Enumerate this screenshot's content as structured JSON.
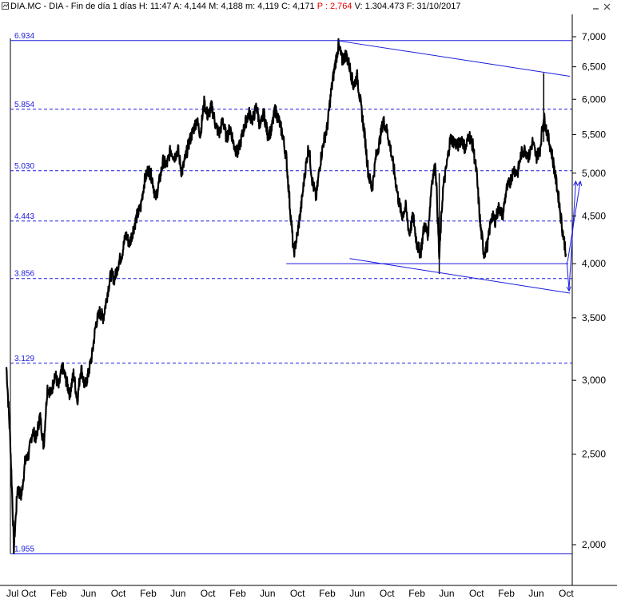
{
  "header": {
    "symbol": "DIA.MC",
    "name": "DIA",
    "period": "Fin de día 1 días",
    "high": "H: 11:47",
    "open": "A: 4,144",
    "max": "M: 4,188",
    "min": "m: 4,119",
    "close": "C: 4,171",
    "pct": "P : 2,764",
    "volume": "V: 1.304.473",
    "date": "F: 31/10/2017"
  },
  "colors": {
    "price": "#000000",
    "levels": "#1a1adc",
    "trend": "#1a1adc",
    "pct": "#e00000"
  },
  "chart_data": {
    "type": "line",
    "scale": "log",
    "ylim": [
      1.9,
      7.0
    ],
    "y_ticks": [
      2.0,
      2.5,
      3.0,
      3.5,
      4.0,
      4.5,
      5.0,
      5.5,
      6.0,
      6.5,
      7.0
    ],
    "y_tick_labels": [
      "2,000",
      "2,500",
      "3,000",
      "3,500",
      "4,000",
      "4,500",
      "5,000",
      "5,500",
      "6,000",
      "6,500",
      "7,000"
    ],
    "x_ticks": [
      {
        "label": "Jul",
        "t": 0
      },
      {
        "label": "Oct",
        "t": 3
      },
      {
        "label": "Feb",
        "t": 7
      },
      {
        "label": "Jun",
        "t": 11
      },
      {
        "label": "Oct",
        "t": 15
      },
      {
        "label": "Feb",
        "t": 19
      },
      {
        "label": "Jun",
        "t": 23
      },
      {
        "label": "Oct",
        "t": 27
      },
      {
        "label": "Feb",
        "t": 31
      },
      {
        "label": "Jun",
        "t": 35
      },
      {
        "label": "Oct",
        "t": 39
      },
      {
        "label": "Feb",
        "t": 43
      },
      {
        "label": "Jun",
        "t": 47
      },
      {
        "label": "Oct",
        "t": 51
      },
      {
        "label": "Feb",
        "t": 55
      },
      {
        "label": "Jun",
        "t": 59
      },
      {
        "label": "Oct",
        "t": 63
      },
      {
        "label": "Feb",
        "t": 67
      },
      {
        "label": "Jun",
        "t": 71
      },
      {
        "label": "Oct",
        "t": 75
      }
    ],
    "x_range": [
      0,
      75.5
    ],
    "levels": [
      {
        "value": 6.934,
        "label": "6.934",
        "style": "solid"
      },
      {
        "value": 5.854,
        "label": "5.854",
        "style": "dashed"
      },
      {
        "value": 5.03,
        "label": "5.030",
        "style": "dashed"
      },
      {
        "value": 4.443,
        "label": "4.443",
        "style": "dashed"
      },
      {
        "value": 3.856,
        "label": "3.856",
        "style": "dashed"
      },
      {
        "value": 3.129,
        "label": "3.129",
        "style": "dashed"
      },
      {
        "value": 1.955,
        "label": "1.955",
        "style": "solid"
      }
    ],
    "series": [
      {
        "points": [
          [
            0,
            3.1
          ],
          [
            0.5,
            2.6
          ],
          [
            1,
            1.98
          ],
          [
            1.5,
            2.3
          ],
          [
            2,
            2.25
          ],
          [
            2.5,
            2.45
          ],
          [
            3,
            2.5
          ],
          [
            3.5,
            2.65
          ],
          [
            4,
            2.6
          ],
          [
            4.5,
            2.75
          ],
          [
            5,
            2.55
          ],
          [
            5.5,
            2.95
          ],
          [
            6,
            2.9
          ],
          [
            6.5,
            3.05
          ],
          [
            7,
            2.95
          ],
          [
            7.5,
            3.1
          ],
          [
            8,
            3.0
          ],
          [
            8.5,
            2.9
          ],
          [
            9,
            3.05
          ],
          [
            9.5,
            2.85
          ],
          [
            10,
            3.1
          ],
          [
            10.5,
            2.95
          ],
          [
            11,
            3.05
          ],
          [
            11.5,
            3.2
          ],
          [
            12,
            3.45
          ],
          [
            12.5,
            3.55
          ],
          [
            13,
            3.5
          ],
          [
            13.5,
            3.7
          ],
          [
            14,
            3.9
          ],
          [
            14.5,
            3.85
          ],
          [
            15,
            4.0
          ],
          [
            15.5,
            4.1
          ],
          [
            16,
            4.3
          ],
          [
            16.5,
            4.2
          ],
          [
            17,
            4.35
          ],
          [
            17.5,
            4.5
          ],
          [
            18,
            4.6
          ],
          [
            18.5,
            4.9
          ],
          [
            19,
            5.05
          ],
          [
            19.5,
            4.95
          ],
          [
            20,
            4.7
          ],
          [
            20.5,
            4.9
          ],
          [
            21,
            5.15
          ],
          [
            21.5,
            5.1
          ],
          [
            22,
            5.3
          ],
          [
            22.5,
            5.2
          ],
          [
            23,
            5.3
          ],
          [
            23.5,
            5.0
          ],
          [
            24,
            5.2
          ],
          [
            24.5,
            5.4
          ],
          [
            25,
            5.55
          ],
          [
            25.5,
            5.7
          ],
          [
            26,
            5.5
          ],
          [
            26.5,
            5.95
          ],
          [
            27,
            5.75
          ],
          [
            27.5,
            5.9
          ],
          [
            28,
            5.65
          ],
          [
            28.5,
            5.5
          ],
          [
            29,
            5.7
          ],
          [
            29.5,
            5.45
          ],
          [
            30,
            5.6
          ],
          [
            30.5,
            5.35
          ],
          [
            31,
            5.25
          ],
          [
            31.5,
            5.45
          ],
          [
            32,
            5.65
          ],
          [
            32.5,
            5.8
          ],
          [
            33,
            5.7
          ],
          [
            33.5,
            5.9
          ],
          [
            34,
            5.6
          ],
          [
            34.5,
            5.8
          ],
          [
            35,
            5.5
          ],
          [
            35.5,
            5.55
          ],
          [
            36,
            5.85
          ],
          [
            36.5,
            5.7
          ],
          [
            37,
            5.5
          ],
          [
            37.5,
            5.2
          ],
          [
            38,
            4.6
          ],
          [
            38.5,
            4.1
          ],
          [
            39,
            4.3
          ],
          [
            39.5,
            4.6
          ],
          [
            40,
            5.0
          ],
          [
            40.5,
            5.35
          ],
          [
            41,
            4.9
          ],
          [
            41.5,
            4.7
          ],
          [
            42,
            5.1
          ],
          [
            42.5,
            5.4
          ],
          [
            43,
            5.6
          ],
          [
            43.5,
            6.1
          ],
          [
            44,
            6.5
          ],
          [
            44.5,
            6.85
          ],
          [
            45,
            6.6
          ],
          [
            45.5,
            6.7
          ],
          [
            46,
            6.5
          ],
          [
            46.5,
            6.2
          ],
          [
            47,
            6.35
          ],
          [
            47.5,
            5.9
          ],
          [
            48,
            5.5
          ],
          [
            48.5,
            5.0
          ],
          [
            49,
            4.8
          ],
          [
            49.5,
            5.2
          ],
          [
            50,
            5.4
          ],
          [
            50.5,
            5.7
          ],
          [
            51,
            5.55
          ],
          [
            51.5,
            5.3
          ],
          [
            52,
            5.0
          ],
          [
            52.5,
            4.7
          ],
          [
            53,
            4.5
          ],
          [
            53.5,
            4.6
          ],
          [
            54,
            4.3
          ],
          [
            54.5,
            4.5
          ],
          [
            55,
            4.2
          ],
          [
            55.5,
            4.1
          ],
          [
            56,
            4.4
          ],
          [
            56.5,
            4.3
          ],
          [
            57,
            4.9
          ],
          [
            57.5,
            5.1
          ],
          [
            58,
            4.05
          ],
          [
            58.5,
            4.8
          ],
          [
            59,
            5.1
          ],
          [
            59.5,
            5.45
          ],
          [
            60,
            5.4
          ],
          [
            60.5,
            5.35
          ],
          [
            61,
            5.45
          ],
          [
            61.5,
            5.3
          ],
          [
            62,
            5.5
          ],
          [
            62.5,
            5.35
          ],
          [
            63,
            5.0
          ],
          [
            63.5,
            4.4
          ],
          [
            64,
            4.1
          ],
          [
            64.5,
            4.2
          ],
          [
            65,
            4.5
          ],
          [
            65.5,
            4.45
          ],
          [
            66,
            4.6
          ],
          [
            66.5,
            4.5
          ],
          [
            67,
            4.8
          ],
          [
            67.5,
            4.9
          ],
          [
            68,
            5.05
          ],
          [
            68.5,
            5.0
          ],
          [
            69,
            5.25
          ],
          [
            69.5,
            5.3
          ],
          [
            70,
            5.2
          ],
          [
            70.5,
            5.4
          ],
          [
            71,
            5.2
          ],
          [
            71.5,
            5.3
          ],
          [
            72,
            5.75
          ],
          [
            72.5,
            5.5
          ],
          [
            73,
            5.3
          ],
          [
            73.5,
            5.0
          ],
          [
            74,
            4.7
          ],
          [
            74.5,
            4.35
          ],
          [
            75,
            4.1
          ]
        ]
      }
    ],
    "spikes": [
      {
        "t": 58,
        "low": 3.9,
        "high": 5.0
      },
      {
        "t": 72,
        "low": 5.4,
        "high": 6.4
      }
    ],
    "trendlines": [
      {
        "from": [
          44.3,
          6.934
        ],
        "to": [
          75.5,
          6.35
        ]
      },
      {
        "from": [
          37.5,
          4.0
        ],
        "to": [
          75.3,
          4.0
        ]
      },
      {
        "from": [
          46,
          4.05
        ],
        "to": [
          75.5,
          3.72
        ]
      }
    ],
    "projection_arrows": [
      {
        "from": [
          75.1,
          4.02
        ],
        "to": [
          75.4,
          3.74
        ]
      },
      {
        "from": [
          75.4,
          3.76
        ],
        "to": [
          76.3,
          4.9
        ]
      },
      {
        "from": [
          75.2,
          4.02
        ],
        "to": [
          76.9,
          4.9
        ]
      }
    ]
  }
}
